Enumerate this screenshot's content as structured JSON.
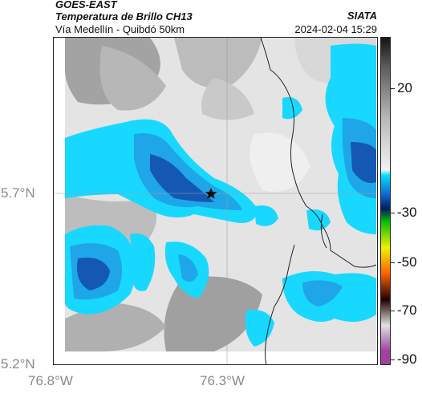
{
  "header": {
    "satellite": "GOES-EAST",
    "product": "Temperatura de Brillo CH13",
    "region": "Vía Medellín - Quibdó 50km",
    "agency": "SIATA",
    "timestamp": "2024-02-04 15:29"
  },
  "axes": {
    "lat_labels": [
      "5.7°N",
      "5.2°N"
    ],
    "lon_labels": [
      "76.8°W",
      "76.3°W"
    ]
  },
  "colorbar": {
    "tick_labels": [
      "20",
      "-30",
      "-50",
      "-70",
      "-90"
    ],
    "stops": [
      {
        "value": 30,
        "color": "#1a1a1a"
      },
      {
        "value": 20,
        "color": "#5a5a5a"
      },
      {
        "value": 0,
        "color": "#b8b8b8"
      },
      {
        "value": -20,
        "color": "#f2f2f2"
      },
      {
        "value": -22,
        "color": "#00e0ff"
      },
      {
        "value": -30,
        "color": "#1060c8"
      },
      {
        "value": -35,
        "color": "#001a60"
      },
      {
        "value": -40,
        "color": "#00c000"
      },
      {
        "value": -50,
        "color": "#f0f000"
      },
      {
        "value": -60,
        "color": "#ff6000"
      },
      {
        "value": -70,
        "color": "#200000"
      },
      {
        "value": -80,
        "color": "#e0e0e0"
      },
      {
        "value": -90,
        "color": "#a040a0"
      }
    ]
  },
  "colors": {
    "cloud_top_cyan": "#18d8ff",
    "cloud_top_mid": "#1fa6e8",
    "cloud_top_deep": "#1458b4",
    "warm_grey": "#9a9a9a",
    "border_line": "#222222"
  },
  "map": {
    "marker_icon": "star-icon",
    "gridlines": true
  }
}
